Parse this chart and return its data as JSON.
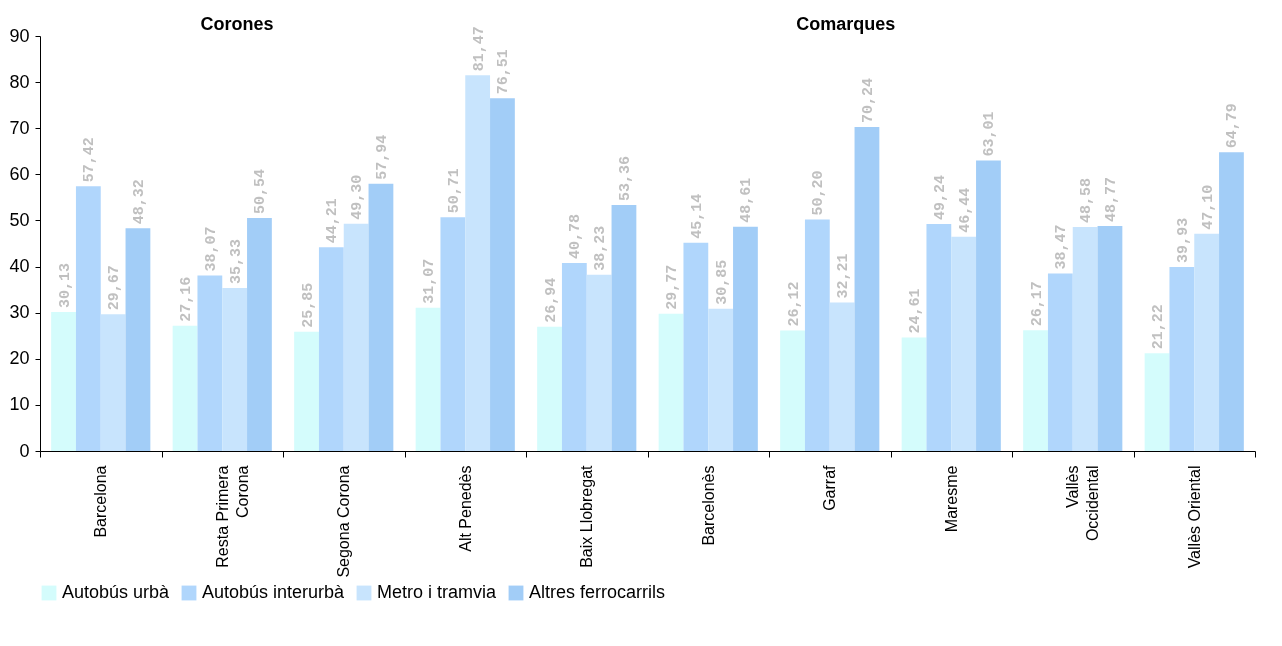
{
  "chart_data": {
    "type": "bar",
    "categories": [
      "Barcelona",
      "Resta Primera Corona",
      "Segona Corona",
      "Alt Penedès",
      "Baix Llobregat",
      "Barcelonès",
      "Garraf",
      "Maresme",
      "Vallès Occidental",
      "Vallès Oriental"
    ],
    "series": [
      {
        "name": "Autobús urbà",
        "color": "#d4fcfc",
        "values": [
          30.13,
          27.16,
          25.85,
          31.07,
          26.94,
          29.77,
          26.12,
          24.61,
          26.17,
          21.22
        ],
        "value_labels": [
          "30,13",
          "27,16",
          "25,85",
          "31,07",
          "26,94",
          "29,77",
          "26,12",
          "24,61",
          "26,17",
          "21,22"
        ]
      },
      {
        "name": "Autobús interurbà",
        "color": "#b0d6fc",
        "values": [
          57.42,
          38.07,
          44.21,
          50.71,
          40.78,
          45.14,
          50.2,
          49.24,
          38.47,
          39.93
        ],
        "value_labels": [
          "57,42",
          "38,07",
          "44,21",
          "50,71",
          "40,78",
          "45,14",
          "50,20",
          "49,24",
          "38,47",
          "39,93"
        ]
      },
      {
        "name": "Metro i tramvia",
        "color": "#c8e4fd",
        "values": [
          29.67,
          35.33,
          49.3,
          81.47,
          38.23,
          30.85,
          32.21,
          46.44,
          48.58,
          47.1
        ],
        "value_labels": [
          "29,67",
          "35,33",
          "49,30",
          "81,47",
          "38,23",
          "30,85",
          "32,21",
          "46,44",
          "48,58",
          "47,10"
        ]
      },
      {
        "name": "Altres ferrocarrils",
        "color": "#a2cdf7",
        "values": [
          48.32,
          50.54,
          57.94,
          76.51,
          53.36,
          48.61,
          70.24,
          63.01,
          48.77,
          64.79
        ],
        "value_labels": [
          "48,32",
          "50,54",
          "57,94",
          "76,51",
          "53,36",
          "48,61",
          "70,24",
          "63,01",
          "48,77",
          "64,79"
        ]
      }
    ],
    "ylim": [
      0,
      90
    ],
    "yticks": [
      0,
      10,
      20,
      30,
      40,
      50,
      60,
      70,
      80,
      90
    ],
    "grid": false,
    "legend": "bottom",
    "annotations": [
      "Corones",
      "Comarques"
    ]
  }
}
